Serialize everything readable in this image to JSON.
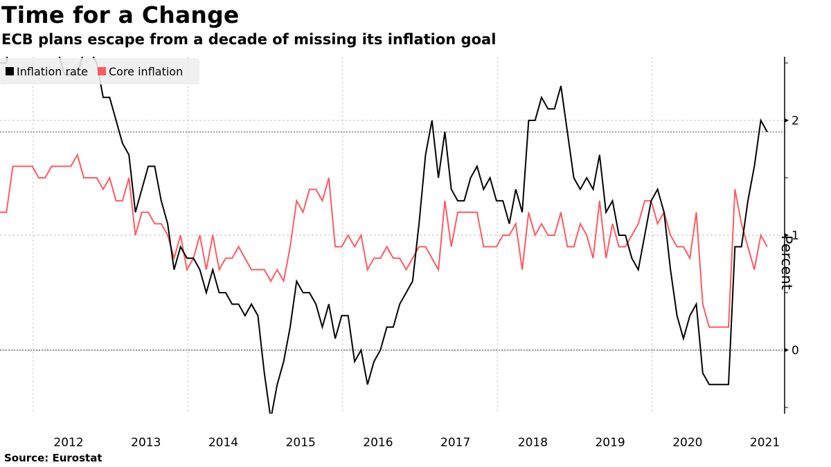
{
  "title": "Time for a Change",
  "subtitle": "ECB plans escape from a decade of missing its inflation goal",
  "source": "Source:  Eurostat",
  "chart_data": {
    "type": "line",
    "title": "Time for a Change",
    "subtitle": "ECB plans escape from a decade of missing its inflation goal",
    "xlabel": "",
    "ylabel": "Percent",
    "ylim": [
      -0.55,
      2.55
    ],
    "y_ticks": [
      0,
      1,
      2
    ],
    "y_tick_labels": [
      "0",
      "1",
      "2"
    ],
    "x_tick_labels": [
      "2012",
      "2013",
      "2014",
      "2015",
      "2016",
      "2017",
      "2018",
      "2019",
      "2020",
      "2021"
    ],
    "x_start": "2011-07",
    "x_end": "2021-06",
    "frequency": "monthly",
    "reference_line": 1.9,
    "grid": true,
    "legend_position": "top-left",
    "series": [
      {
        "name": "Inflation rate",
        "color": "#000000",
        "values": [
          2.5,
          2.5,
          3.0,
          3.0,
          3.0,
          2.7,
          2.7,
          2.7,
          2.7,
          2.6,
          2.4,
          2.4,
          2.4,
          2.6,
          2.6,
          2.5,
          2.2,
          2.2,
          2.0,
          1.8,
          1.7,
          1.2,
          1.4,
          1.6,
          1.6,
          1.3,
          1.1,
          0.7,
          0.9,
          0.8,
          0.8,
          0.7,
          0.5,
          0.7,
          0.5,
          0.5,
          0.4,
          0.4,
          0.3,
          0.4,
          0.3,
          -0.2,
          -0.6,
          -0.3,
          -0.1,
          0.2,
          0.6,
          0.5,
          0.5,
          0.4,
          0.2,
          0.4,
          0.1,
          0.3,
          0.3,
          -0.1,
          0.0,
          -0.3,
          -0.1,
          0.0,
          0.2,
          0.2,
          0.4,
          0.5,
          0.6,
          1.1,
          1.7,
          2.0,
          1.5,
          1.9,
          1.4,
          1.3,
          1.3,
          1.5,
          1.6,
          1.4,
          1.5,
          1.3,
          1.3,
          1.1,
          1.4,
          1.2,
          2.0,
          2.0,
          2.2,
          2.1,
          2.1,
          2.3,
          1.9,
          1.5,
          1.4,
          1.5,
          1.4,
          1.7,
          1.2,
          1.3,
          1.0,
          1.0,
          0.8,
          0.7,
          1.0,
          1.3,
          1.4,
          1.2,
          0.7,
          0.3,
          0.1,
          0.3,
          0.4,
          -0.2,
          -0.3,
          -0.3,
          -0.3,
          -0.3,
          0.9,
          0.9,
          1.3,
          1.6,
          2.0,
          1.9
        ]
      },
      {
        "name": "Core inflation",
        "color": "#ff5a5f",
        "values": [
          1.2,
          1.2,
          1.6,
          1.6,
          1.6,
          1.6,
          1.5,
          1.5,
          1.6,
          1.6,
          1.6,
          1.6,
          1.7,
          1.5,
          1.5,
          1.5,
          1.4,
          1.5,
          1.3,
          1.3,
          1.5,
          1.0,
          1.2,
          1.2,
          1.1,
          1.1,
          1.0,
          0.8,
          1.0,
          0.7,
          0.8,
          1.0,
          0.7,
          1.0,
          0.7,
          0.8,
          0.8,
          0.9,
          0.8,
          0.7,
          0.7,
          0.7,
          0.6,
          0.7,
          0.6,
          0.9,
          1.3,
          1.2,
          1.4,
          1.4,
          1.3,
          1.5,
          0.9,
          0.9,
          1.0,
          0.9,
          1.0,
          0.7,
          0.8,
          0.8,
          0.9,
          0.8,
          0.8,
          0.7,
          0.8,
          0.9,
          0.9,
          0.8,
          0.7,
          1.3,
          0.9,
          1.2,
          1.2,
          1.2,
          1.2,
          0.9,
          0.9,
          0.9,
          1.0,
          1.0,
          1.1,
          0.7,
          1.2,
          1.0,
          1.1,
          1.0,
          1.0,
          1.2,
          0.9,
          0.9,
          1.1,
          1.0,
          0.8,
          1.3,
          0.8,
          1.1,
          0.9,
          0.9,
          1.0,
          1.1,
          1.3,
          1.3,
          1.1,
          1.2,
          1.0,
          0.9,
          0.9,
          0.8,
          1.2,
          0.4,
          0.2,
          0.2,
          0.2,
          0.2,
          1.4,
          1.1,
          0.9,
          0.7,
          1.0,
          0.9
        ]
      }
    ]
  }
}
